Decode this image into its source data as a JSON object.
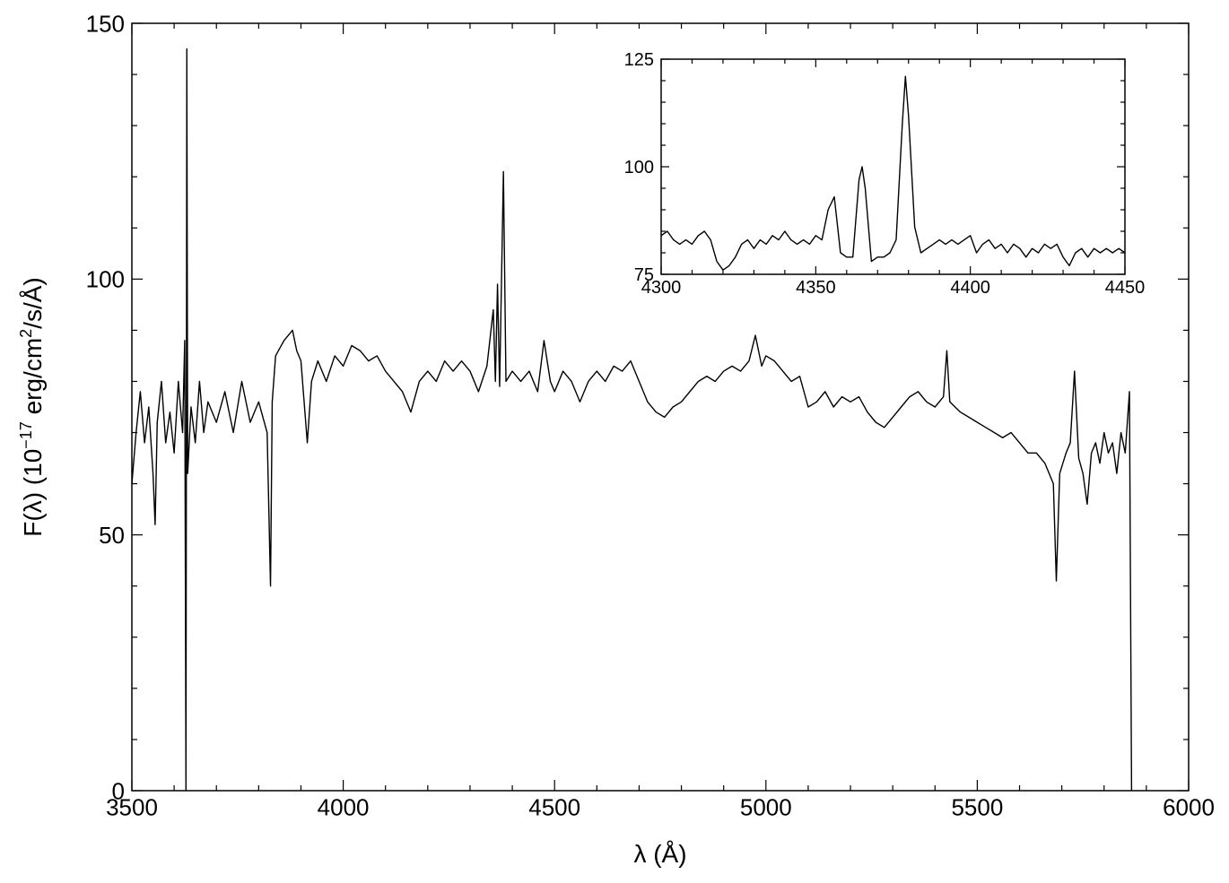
{
  "chart_data": [
    {
      "type": "line",
      "xlabel": "λ (Å)",
      "ylabel": [
        "F(λ)  (10",
        "−17",
        " erg/cm",
        "2",
        "/s/Å)"
      ],
      "xlim": [
        3500,
        6000
      ],
      "ylim": [
        0,
        150
      ],
      "xticks": [
        3500,
        4000,
        4500,
        5000,
        5500,
        6000
      ],
      "yticks": [
        0,
        50,
        100,
        150
      ],
      "xminorticks": [
        3600,
        3700,
        3800,
        3900,
        4100,
        4200,
        4300,
        4400,
        4600,
        4700,
        4800,
        4900,
        5100,
        5200,
        5300,
        5400,
        5600,
        5700,
        5800,
        5900
      ],
      "yminorticks": [
        10,
        20,
        30,
        40,
        60,
        70,
        80,
        90,
        110,
        120,
        130,
        140
      ],
      "color": "#000000",
      "x": [
        3500,
        3510,
        3520,
        3530,
        3540,
        3550,
        3555,
        3560,
        3570,
        3580,
        3590,
        3600,
        3610,
        3620,
        3625,
        3628,
        3630,
        3632,
        3640,
        3650,
        3660,
        3670,
        3680,
        3700,
        3720,
        3740,
        3760,
        3780,
        3800,
        3820,
        3828,
        3832,
        3840,
        3860,
        3880,
        3890,
        3900,
        3915,
        3925,
        3940,
        3960,
        3980,
        4000,
        4020,
        4040,
        4060,
        4080,
        4100,
        4120,
        4140,
        4160,
        4180,
        4200,
        4220,
        4240,
        4260,
        4280,
        4300,
        4320,
        4340,
        4355,
        4360,
        4365,
        4370,
        4379,
        4385,
        4400,
        4420,
        4440,
        4460,
        4475,
        4490,
        4500,
        4520,
        4540,
        4560,
        4580,
        4600,
        4620,
        4640,
        4660,
        4680,
        4700,
        4720,
        4740,
        4760,
        4780,
        4800,
        4820,
        4840,
        4860,
        4880,
        4900,
        4920,
        4940,
        4960,
        4975,
        4990,
        5000,
        5020,
        5040,
        5060,
        5080,
        5100,
        5120,
        5140,
        5160,
        5180,
        5200,
        5220,
        5240,
        5260,
        5280,
        5300,
        5320,
        5340,
        5360,
        5380,
        5400,
        5420,
        5428,
        5435,
        5460,
        5480,
        5500,
        5520,
        5540,
        5560,
        5580,
        5600,
        5620,
        5640,
        5660,
        5680,
        5687,
        5695,
        5710,
        5720,
        5730,
        5740,
        5750,
        5760,
        5770,
        5780,
        5790,
        5800,
        5810,
        5820,
        5830,
        5840,
        5850,
        5860,
        5865
      ],
      "values": [
        60,
        70,
        78,
        68,
        75,
        62,
        52,
        72,
        80,
        68,
        74,
        66,
        80,
        70,
        88,
        0,
        145,
        62,
        75,
        68,
        80,
        70,
        76,
        72,
        78,
        70,
        80,
        72,
        76,
        70,
        40,
        76,
        85,
        88,
        90,
        86,
        84,
        68,
        80,
        84,
        80,
        85,
        83,
        87,
        86,
        84,
        85,
        82,
        80,
        78,
        74,
        80,
        82,
        80,
        84,
        82,
        84,
        82,
        78,
        83,
        94,
        80,
        99,
        79,
        121,
        80,
        82,
        80,
        82,
        78,
        88,
        80,
        78,
        82,
        80,
        76,
        80,
        82,
        80,
        83,
        82,
        84,
        80,
        76,
        74,
        73,
        75,
        76,
        78,
        80,
        81,
        80,
        82,
        83,
        82,
        84,
        89,
        83,
        85,
        84,
        82,
        80,
        81,
        75,
        76,
        78,
        75,
        77,
        76,
        77,
        74,
        72,
        71,
        73,
        75,
        77,
        78,
        76,
        75,
        77,
        86,
        76,
        74,
        73,
        72,
        71,
        70,
        69,
        70,
        68,
        66,
        66,
        64,
        60,
        41,
        62,
        66,
        68,
        82,
        65,
        62,
        56,
        66,
        68,
        64,
        70,
        66,
        68,
        62,
        70,
        66,
        78,
        0
      ]
    },
    {
      "type": "line",
      "xlim": [
        4300,
        4450
      ],
      "ylim": [
        75,
        125
      ],
      "xticks": [
        4300,
        4350,
        4400,
        4450
      ],
      "yticks": [
        75,
        100,
        125
      ],
      "xminorticks": [
        4310,
        4320,
        4330,
        4340,
        4360,
        4370,
        4380,
        4390,
        4410,
        4420,
        4430,
        4440
      ],
      "yminorticks": [
        80,
        85,
        90,
        95,
        105,
        110,
        115,
        120
      ],
      "color": "#000000",
      "x": [
        4300,
        4302,
        4304,
        4306,
        4308,
        4310,
        4312,
        4314,
        4316,
        4318,
        4320,
        4322,
        4324,
        4326,
        4328,
        4330,
        4332,
        4334,
        4336,
        4338,
        4340,
        4342,
        4344,
        4346,
        4348,
        4350,
        4352,
        4354,
        4356,
        4358,
        4360,
        4362,
        4364,
        4365,
        4366,
        4368,
        4370,
        4372,
        4374,
        4376,
        4378,
        4379,
        4380,
        4382,
        4384,
        4386,
        4388,
        4390,
        4392,
        4394,
        4396,
        4398,
        4400,
        4402,
        4404,
        4406,
        4408,
        4410,
        4412,
        4414,
        4416,
        4418,
        4420,
        4422,
        4424,
        4426,
        4428,
        4430,
        4432,
        4434,
        4436,
        4438,
        4440,
        4442,
        4444,
        4446,
        4448,
        4450
      ],
      "values": [
        84,
        85,
        83,
        82,
        83,
        82,
        84,
        85,
        83,
        78,
        76,
        77,
        79,
        82,
        83,
        81,
        83,
        82,
        84,
        83,
        85,
        83,
        82,
        83,
        82,
        84,
        83,
        90,
        93,
        80,
        79,
        79,
        97,
        100,
        95,
        78,
        79,
        79,
        80,
        83,
        110,
        121,
        112,
        86,
        80,
        81,
        82,
        83,
        82,
        83,
        82,
        83,
        84,
        80,
        82,
        83,
        81,
        82,
        80,
        82,
        81,
        79,
        81,
        80,
        82,
        81,
        82,
        79,
        77,
        80,
        81,
        79,
        81,
        80,
        81,
        80,
        81,
        80
      ]
    }
  ]
}
